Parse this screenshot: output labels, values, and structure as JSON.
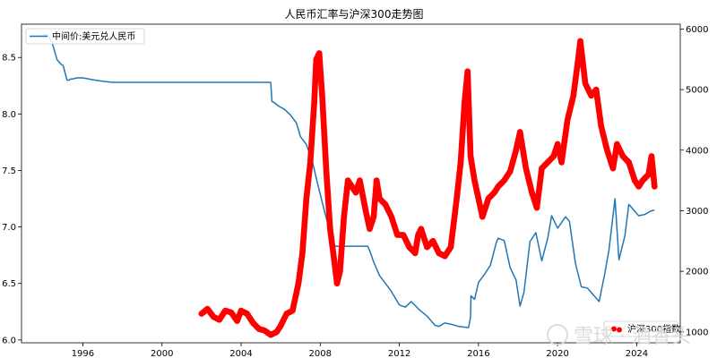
{
  "chart_data": {
    "type": "line",
    "title": "人民币汇率与沪深300走势图",
    "x_ticks": [
      "1996",
      "2000",
      "2004",
      "2008",
      "2012",
      "2016",
      "2020",
      "2024"
    ],
    "x_range": [
      1992.9,
      2026.2
    ],
    "left_axis": {
      "ylim": [
        5.975,
        8.795
      ],
      "ticks": [
        "6.0",
        "6.5",
        "7.0",
        "7.5",
        "8.0",
        "8.5"
      ],
      "tick_values": [
        6.0,
        6.5,
        7.0,
        7.5,
        8.0,
        8.5
      ]
    },
    "right_axis": {
      "ylim": [
        820,
        6080
      ],
      "ticks": [
        "1000",
        "2000",
        "3000",
        "4000",
        "5000",
        "6000"
      ],
      "tick_values": [
        1000,
        2000,
        3000,
        4000,
        5000,
        6000
      ]
    },
    "legend_position": "upper-left",
    "legend_position_right": "lower-right",
    "series": [
      {
        "name": "中间价:美元兑人民币",
        "axis": "left",
        "style": "line",
        "color": "#1f77b4",
        "x": [
          1994.0,
          1994.2,
          1994.4,
          1994.5,
          1994.7,
          1994.9,
          1995.0,
          1995.2,
          1995.3,
          1995.4,
          1995.5,
          1995.7,
          1996.0,
          1996.3,
          1996.6,
          1997.0,
          1997.5,
          1998.0,
          2000.0,
          2002.0,
          2004.0,
          2005.5,
          2005.56,
          2005.6,
          2005.9,
          2006.2,
          2006.5,
          2006.8,
          2007.0,
          2007.3,
          2007.6,
          2007.9,
          2008.2,
          2008.5,
          2008.7,
          2008.8,
          2009.0,
          2009.5,
          2010.0,
          2010.4,
          2010.5,
          2010.7,
          2011.0,
          2011.3,
          2011.6,
          2012.0,
          2012.3,
          2012.6,
          2013.0,
          2013.4,
          2013.8,
          2014.0,
          2014.3,
          2014.6,
          2015.0,
          2015.5,
          2015.6,
          2015.62,
          2015.8,
          2016.0,
          2016.3,
          2016.6,
          2016.9,
          2017.0,
          2017.3,
          2017.6,
          2017.9,
          2018.1,
          2018.3,
          2018.6,
          2018.9,
          2019.2,
          2019.5,
          2019.7,
          2020.0,
          2020.4,
          2020.6,
          2020.9,
          2021.2,
          2021.5,
          2021.9,
          2022.1,
          2022.4,
          2022.6,
          2022.9,
          2023.1,
          2023.4,
          2023.6,
          2023.9,
          2024.1,
          2024.4,
          2024.7,
          2024.9
        ],
        "y": [
          8.7,
          8.7,
          8.65,
          8.6,
          8.48,
          8.44,
          8.43,
          8.3,
          8.3,
          8.31,
          8.31,
          8.32,
          8.32,
          8.31,
          8.3,
          8.29,
          8.28,
          8.28,
          8.28,
          8.28,
          8.28,
          8.28,
          8.11,
          8.11,
          8.07,
          8.04,
          7.99,
          7.92,
          7.8,
          7.73,
          7.58,
          7.36,
          7.15,
          6.95,
          6.84,
          6.83,
          6.83,
          6.83,
          6.83,
          6.83,
          6.79,
          6.69,
          6.57,
          6.5,
          6.43,
          6.31,
          6.29,
          6.34,
          6.27,
          6.21,
          6.13,
          6.12,
          6.15,
          6.14,
          6.12,
          6.11,
          6.2,
          6.39,
          6.36,
          6.51,
          6.58,
          6.66,
          6.86,
          6.9,
          6.88,
          6.64,
          6.53,
          6.3,
          6.42,
          6.87,
          6.95,
          6.7,
          6.9,
          7.1,
          6.99,
          7.09,
          7.05,
          6.68,
          6.47,
          6.46,
          6.38,
          6.34,
          6.6,
          6.8,
          7.25,
          6.71,
          6.92,
          7.2,
          7.14,
          7.1,
          7.11,
          7.14,
          7.15
        ]
      },
      {
        "name": "沪深300指数",
        "axis": "right",
        "style": "markers",
        "color": "#ff0000",
        "x": [
          2002.0,
          2002.3,
          2002.6,
          2002.9,
          2003.2,
          2003.5,
          2003.8,
          2004.0,
          2004.3,
          2004.6,
          2004.9,
          2005.2,
          2005.5,
          2005.8,
          2006.0,
          2006.3,
          2006.6,
          2006.9,
          2007.1,
          2007.3,
          2007.5,
          2007.7,
          2007.8,
          2007.95,
          2008.1,
          2008.3,
          2008.5,
          2008.7,
          2008.85,
          2009.0,
          2009.2,
          2009.4,
          2009.6,
          2009.8,
          2010.0,
          2010.3,
          2010.5,
          2010.7,
          2010.85,
          2011.0,
          2011.3,
          2011.6,
          2011.9,
          2012.2,
          2012.5,
          2012.8,
          2012.95,
          2013.1,
          2013.4,
          2013.7,
          2014.0,
          2014.3,
          2014.6,
          2014.9,
          2015.1,
          2015.3,
          2015.45,
          2015.6,
          2015.8,
          2016.0,
          2016.2,
          2016.5,
          2016.8,
          2017.0,
          2017.3,
          2017.6,
          2017.9,
          2018.1,
          2018.4,
          2018.7,
          2018.95,
          2019.2,
          2019.5,
          2019.8,
          2020.0,
          2020.2,
          2020.5,
          2020.8,
          2021.0,
          2021.15,
          2021.4,
          2021.7,
          2021.95,
          2022.2,
          2022.5,
          2022.8,
          2023.0,
          2023.3,
          2023.6,
          2023.9,
          2024.1,
          2024.3,
          2024.6,
          2024.75,
          2024.9
        ],
        "y": [
          1300,
          1380,
          1250,
          1200,
          1350,
          1320,
          1180,
          1350,
          1300,
          1150,
          1050,
          1020,
          950,
          1000,
          1100,
          1300,
          1350,
          1800,
          2300,
          3200,
          3800,
          4800,
          5500,
          5600,
          4900,
          3700,
          2700,
          2200,
          1800,
          2000,
          2900,
          3500,
          3400,
          3300,
          3500,
          3000,
          2700,
          2900,
          3500,
          3200,
          3100,
          2900,
          2600,
          2600,
          2400,
          2300,
          2600,
          2700,
          2400,
          2500,
          2300,
          2250,
          2400,
          3200,
          3800,
          4800,
          5300,
          3900,
          3500,
          3200,
          2900,
          3200,
          3300,
          3400,
          3500,
          3650,
          4000,
          4300,
          3700,
          3300,
          3050,
          3700,
          3800,
          3900,
          4100,
          3800,
          4500,
          4900,
          5400,
          5800,
          5100,
          4900,
          5000,
          4400,
          4000,
          3700,
          4100,
          3900,
          3800,
          3500,
          3400,
          3500,
          3600,
          3900,
          3400
        ]
      }
    ],
    "watermark": "雪球 · 酒香头"
  }
}
